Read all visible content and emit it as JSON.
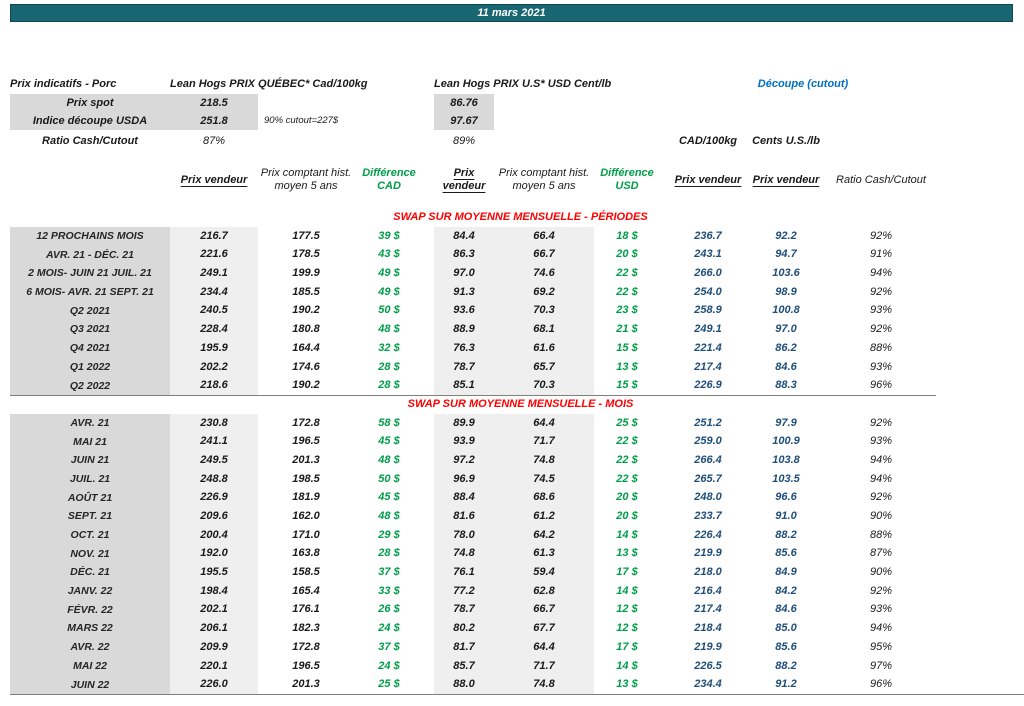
{
  "colors": {
    "header_bar": "#176672",
    "accent_blue": "#0070C0",
    "value_navy": "#1F4E79",
    "diff_green": "#009E49",
    "section_red": "#FF0000",
    "label_gray": "#D9D9D9",
    "band_gray": "#EFEFEF"
  },
  "header": {
    "date": "11 mars 2021"
  },
  "spot": {
    "title": "Prix indicatifs - Porc",
    "quebec_header": "Lean Hogs PRIX QUÉBEC* Cad/100kg",
    "us_header": "Lean Hogs PRIX U.S* USD Cent/lb",
    "cutout_header": "Découpe (cutout)",
    "prix_spot_label": "Prix spot",
    "prix_spot_cad": "218.5",
    "prix_spot_usd": "86.76",
    "indice_label": "Indice découpe USDA",
    "indice_cad": "251.8",
    "indice_note": "90% cutout=227$",
    "indice_usd": "97.67",
    "ratio_label": "Ratio Cash/Cutout",
    "ratio_cad": "87%",
    "ratio_usd": "89%"
  },
  "columns": {
    "cad_unit": "CAD/100kg",
    "us_unit": "Cents U.S./lb",
    "prix_vendeur": "Prix vendeur",
    "prix_comptant": "Prix comptant hist. moyen 5 ans",
    "diff_cad": "Différence CAD",
    "diff_usd": "Différence USD",
    "ratio": "Ratio Cash/Cutout"
  },
  "table": {
    "sections": [
      {
        "title": "SWAP SUR MOYENNE MENSUELLE - PÉRIODES",
        "rows": [
          [
            "12 PROCHAINS MOIS",
            "216.7",
            "177.5",
            "39 $",
            "84.4",
            "66.4",
            "18 $",
            "236.7",
            "92.2",
            "92%"
          ],
          [
            "AVR. 21 -  DÉC. 21",
            "221.6",
            "178.5",
            "43 $",
            "86.3",
            "66.7",
            "20 $",
            "243.1",
            "94.7",
            "91%"
          ],
          [
            "2 MOIS- JUIN 21 JUIL. 21",
            "249.1",
            "199.9",
            "49 $",
            "97.0",
            "74.6",
            "22 $",
            "266.0",
            "103.6",
            "94%"
          ],
          [
            "6 MOIS- AVR. 21 SEPT. 21",
            "234.4",
            "185.5",
            "49 $",
            "91.3",
            "69.2",
            "22 $",
            "254.0",
            "98.9",
            "92%"
          ],
          [
            "Q2 2021",
            "240.5",
            "190.2",
            "50 $",
            "93.6",
            "70.3",
            "23 $",
            "258.9",
            "100.8",
            "93%"
          ],
          [
            "Q3 2021",
            "228.4",
            "180.8",
            "48 $",
            "88.9",
            "68.1",
            "21 $",
            "249.1",
            "97.0",
            "92%"
          ],
          [
            "Q4 2021",
            "195.9",
            "164.4",
            "32 $",
            "76.3",
            "61.6",
            "15 $",
            "221.4",
            "86.2",
            "88%"
          ],
          [
            "Q1 2022",
            "202.2",
            "174.6",
            "28 $",
            "78.7",
            "65.7",
            "13 $",
            "217.4",
            "84.6",
            "93%"
          ],
          [
            "Q2 2022",
            "218.6",
            "190.2",
            "28 $",
            "85.1",
            "70.3",
            "15 $",
            "226.9",
            "88.3",
            "96%"
          ]
        ]
      },
      {
        "title": "SWAP SUR MOYENNE MENSUELLE - MOIS",
        "rows": [
          [
            "AVR. 21",
            "230.8",
            "172.8",
            "58 $",
            "89.9",
            "64.4",
            "25 $",
            "251.2",
            "97.9",
            "92%"
          ],
          [
            "MAI 21",
            "241.1",
            "196.5",
            "45 $",
            "93.9",
            "71.7",
            "22 $",
            "259.0",
            "100.9",
            "93%"
          ],
          [
            "JUIN 21",
            "249.5",
            "201.3",
            "48 $",
            "97.2",
            "74.8",
            "22 $",
            "266.4",
            "103.8",
            "94%"
          ],
          [
            "JUIL. 21",
            "248.8",
            "198.5",
            "50 $",
            "96.9",
            "74.5",
            "22 $",
            "265.7",
            "103.5",
            "94%"
          ],
          [
            "AOÛT 21",
            "226.9",
            "181.9",
            "45 $",
            "88.4",
            "68.6",
            "20 $",
            "248.0",
            "96.6",
            "92%"
          ],
          [
            "SEPT. 21",
            "209.6",
            "162.0",
            "48 $",
            "81.6",
            "61.2",
            "20 $",
            "233.7",
            "91.0",
            "90%"
          ],
          [
            "OCT. 21",
            "200.4",
            "171.0",
            "29 $",
            "78.0",
            "64.2",
            "14 $",
            "226.4",
            "88.2",
            "88%"
          ],
          [
            "NOV. 21",
            "192.0",
            "163.8",
            "28 $",
            "74.8",
            "61.3",
            "13 $",
            "219.9",
            "85.6",
            "87%"
          ],
          [
            "DÉC. 21",
            "195.5",
            "158.5",
            "37 $",
            "76.1",
            "59.4",
            "17 $",
            "218.0",
            "84.9",
            "90%"
          ],
          [
            "JANV. 22",
            "198.4",
            "165.4",
            "33 $",
            "77.2",
            "62.8",
            "14 $",
            "216.4",
            "84.2",
            "92%"
          ],
          [
            "FÉVR. 22",
            "202.1",
            "176.1",
            "26 $",
            "78.7",
            "66.7",
            "12 $",
            "217.4",
            "84.6",
            "93%"
          ],
          [
            "MARS 22",
            "206.1",
            "182.3",
            "24 $",
            "80.2",
            "67.7",
            "12 $",
            "218.4",
            "85.0",
            "94%"
          ],
          [
            "AVR. 22",
            "209.9",
            "172.8",
            "37 $",
            "81.7",
            "64.4",
            "17 $",
            "219.9",
            "85.6",
            "95%"
          ],
          [
            "MAI 22",
            "220.1",
            "196.5",
            "24 $",
            "85.7",
            "71.7",
            "14 $",
            "226.5",
            "88.2",
            "97%"
          ],
          [
            "JUIN 22",
            "226.0",
            "201.3",
            "25 $",
            "88.0",
            "74.8",
            "13 $",
            "234.4",
            "91.2",
            "96%"
          ]
        ]
      }
    ]
  }
}
